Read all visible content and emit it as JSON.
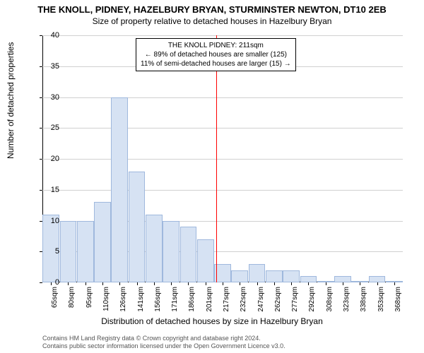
{
  "title": "THE KNOLL, PIDNEY, HAZELBURY BRYAN, STURMINSTER NEWTON, DT10 2EB",
  "subtitle": "Size of property relative to detached houses in Hazelbury Bryan",
  "chart": {
    "type": "histogram",
    "ylabel": "Number of detached properties",
    "xlabel": "Distribution of detached houses by size in Hazelbury Bryan",
    "ylim": [
      0,
      40
    ],
    "ytick_step": 5,
    "x_categories": [
      "65sqm",
      "80sqm",
      "95sqm",
      "110sqm",
      "126sqm",
      "141sqm",
      "156sqm",
      "171sqm",
      "186sqm",
      "201sqm",
      "217sqm",
      "232sqm",
      "247sqm",
      "262sqm",
      "277sqm",
      "292sqm",
      "308sqm",
      "323sqm",
      "338sqm",
      "353sqm",
      "368sqm"
    ],
    "values": [
      11,
      10,
      10,
      13,
      30,
      18,
      11,
      10,
      9,
      7,
      3,
      2,
      3,
      2,
      2,
      1,
      0,
      1,
      0,
      1,
      0
    ],
    "bar_color": "#d6e2f3",
    "bar_border": "#9fb8dd",
    "grid_color": "#d0d0d0",
    "background_color": "#ffffff",
    "reference_line_value": 211,
    "reference_line_color": "#ff0000",
    "info_box": {
      "line1": "THE KNOLL PIDNEY: 211sqm",
      "line2": "← 89% of detached houses are smaller (125)",
      "line3": "11% of semi-detached houses are larger (15) →"
    }
  },
  "footer": {
    "line1": "Contains HM Land Registry data © Crown copyright and database right 2024.",
    "line2": "Contains public sector information licensed under the Open Government Licence v3.0."
  }
}
